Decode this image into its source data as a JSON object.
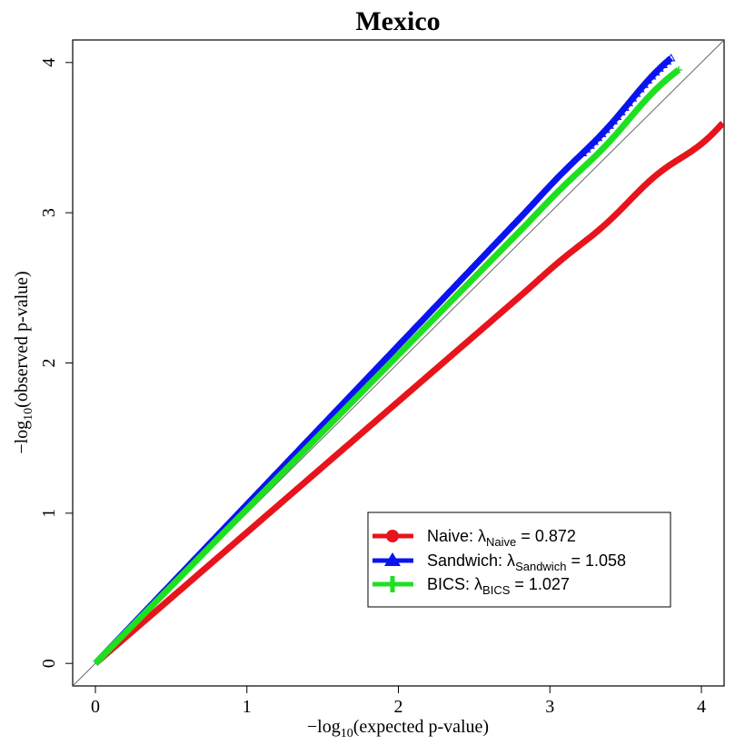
{
  "chart_data": {
    "type": "scatter",
    "title": "Mexico",
    "xlabel_prefix": "−log",
    "xlabel_sub": "10",
    "xlabel_suffix": "(expected p-value)",
    "ylabel_prefix": "−log",
    "ylabel_sub": "10",
    "ylabel_suffix": "(observed p-value)",
    "xlim": [
      -0.15,
      4.15
    ],
    "ylim": [
      -0.15,
      4.15
    ],
    "x_ticks": [
      0,
      1,
      2,
      3,
      4
    ],
    "y_ticks": [
      0,
      1,
      2,
      3,
      4
    ],
    "reference_line": "y = x",
    "legend_position": "bottom-right",
    "series": [
      {
        "name": "Naive",
        "lambda_sub": "Naive",
        "lambda_value": "0.872",
        "color": "#e8141b",
        "marker": "circle",
        "slope": 0.872,
        "x_end": 4.15,
        "y_end": 3.55
      },
      {
        "name": "Sandwich",
        "lambda_sub": "Sandwich",
        "lambda_value": "1.058",
        "color": "#0a14f0",
        "marker": "triangle",
        "slope": 1.058,
        "x_end": 3.8,
        "y_end": 4.15
      },
      {
        "name": "BICS",
        "lambda_sub": "BICS",
        "lambda_value": "1.027",
        "color": "#1fe020",
        "marker": "plus",
        "slope": 1.027,
        "x_end": 3.85,
        "y_end": 4.15
      }
    ]
  }
}
